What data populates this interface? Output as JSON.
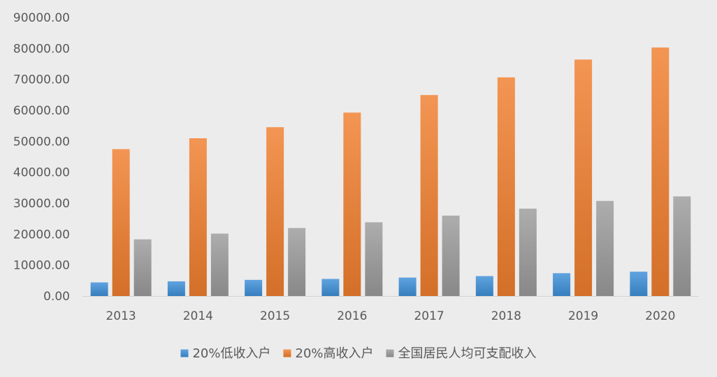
{
  "chart_data": {
    "type": "bar",
    "categories": [
      "2013",
      "2014",
      "2015",
      "2016",
      "2017",
      "2018",
      "2019",
      "2020"
    ],
    "series": [
      {
        "name": "20%低收入户",
        "color": "#3d8fd8",
        "values": [
          4402,
          4747,
          5221,
          5529,
          5958,
          6440,
          7380,
          7869
        ]
      },
      {
        "name": "20%高收入户",
        "color": "#f07e2d",
        "values": [
          47457,
          50968,
          54544,
          59259,
          64934,
          70640,
          76401,
          80294
        ]
      },
      {
        "name": "全国居民人均可支配收入",
        "color": "#9b9b9b",
        "values": [
          18311,
          20167,
          21966,
          23821,
          25974,
          28228,
          30733,
          32189
        ]
      }
    ],
    "y_ticks": [
      "0.00",
      "10000.00",
      "20000.00",
      "30000.00",
      "40000.00",
      "50000.00",
      "60000.00",
      "70000.00",
      "80000.00",
      "90000.00"
    ],
    "ylim": [
      0,
      90000
    ],
    "grid": false,
    "legend_position": "bottom",
    "title": "",
    "xlabel": "",
    "ylabel": ""
  }
}
